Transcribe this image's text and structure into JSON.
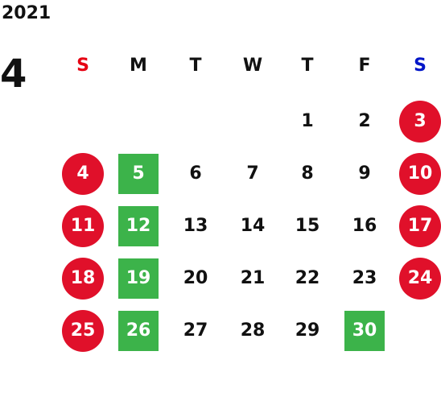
{
  "year": "2021",
  "month": "4",
  "colors": {
    "sunday_text": "#e60012",
    "saturday_text": "#0015c8",
    "weekday_text": "#111111",
    "holiday_circle": "#e0102a",
    "marked_square": "#3cb34a",
    "marked_text": "#ffffff"
  },
  "weekdays": [
    {
      "label": "S",
      "color": "#e60012"
    },
    {
      "label": "M",
      "color": "#111111"
    },
    {
      "label": "T",
      "color": "#111111"
    },
    {
      "label": "W",
      "color": "#111111"
    },
    {
      "label": "T",
      "color": "#111111"
    },
    {
      "label": "F",
      "color": "#111111"
    },
    {
      "label": "S",
      "color": "#0015c8"
    }
  ],
  "days": [
    {
      "day": "1",
      "week": 0,
      "col": 4,
      "style": "plain"
    },
    {
      "day": "2",
      "week": 0,
      "col": 5,
      "style": "plain"
    },
    {
      "day": "3",
      "week": 0,
      "col": 6,
      "style": "circle"
    },
    {
      "day": "4",
      "week": 1,
      "col": 0,
      "style": "circle"
    },
    {
      "day": "5",
      "week": 1,
      "col": 1,
      "style": "square"
    },
    {
      "day": "6",
      "week": 1,
      "col": 2,
      "style": "plain"
    },
    {
      "day": "7",
      "week": 1,
      "col": 3,
      "style": "plain"
    },
    {
      "day": "8",
      "week": 1,
      "col": 4,
      "style": "plain"
    },
    {
      "day": "9",
      "week": 1,
      "col": 5,
      "style": "plain"
    },
    {
      "day": "10",
      "week": 1,
      "col": 6,
      "style": "circle"
    },
    {
      "day": "11",
      "week": 2,
      "col": 0,
      "style": "circle"
    },
    {
      "day": "12",
      "week": 2,
      "col": 1,
      "style": "square"
    },
    {
      "day": "13",
      "week": 2,
      "col": 2,
      "style": "plain"
    },
    {
      "day": "14",
      "week": 2,
      "col": 3,
      "style": "plain"
    },
    {
      "day": "15",
      "week": 2,
      "col": 4,
      "style": "plain"
    },
    {
      "day": "16",
      "week": 2,
      "col": 5,
      "style": "plain"
    },
    {
      "day": "17",
      "week": 2,
      "col": 6,
      "style": "circle"
    },
    {
      "day": "18",
      "week": 3,
      "col": 0,
      "style": "circle"
    },
    {
      "day": "19",
      "week": 3,
      "col": 1,
      "style": "square"
    },
    {
      "day": "20",
      "week": 3,
      "col": 2,
      "style": "plain"
    },
    {
      "day": "21",
      "week": 3,
      "col": 3,
      "style": "plain"
    },
    {
      "day": "22",
      "week": 3,
      "col": 4,
      "style": "plain"
    },
    {
      "day": "23",
      "week": 3,
      "col": 5,
      "style": "plain"
    },
    {
      "day": "24",
      "week": 3,
      "col": 6,
      "style": "circle"
    },
    {
      "day": "25",
      "week": 4,
      "col": 0,
      "style": "circle"
    },
    {
      "day": "26",
      "week": 4,
      "col": 1,
      "style": "square"
    },
    {
      "day": "27",
      "week": 4,
      "col": 2,
      "style": "plain"
    },
    {
      "day": "28",
      "week": 4,
      "col": 3,
      "style": "plain"
    },
    {
      "day": "29",
      "week": 4,
      "col": 4,
      "style": "plain"
    },
    {
      "day": "30",
      "week": 4,
      "col": 5,
      "style": "square"
    }
  ]
}
